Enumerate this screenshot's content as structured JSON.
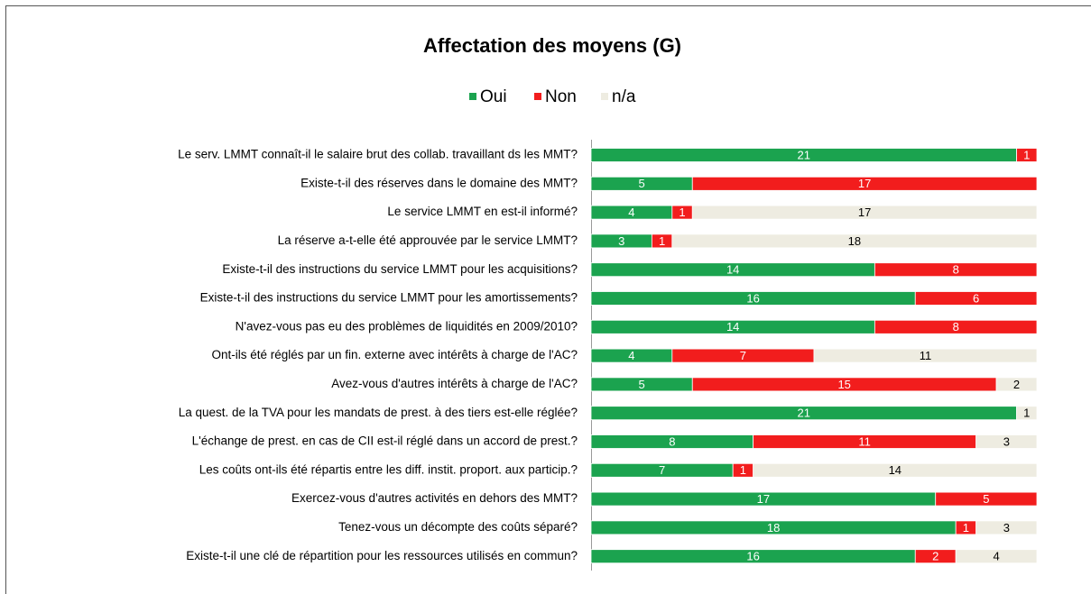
{
  "chart_data": {
    "type": "stacked-barh",
    "title": "Affectation des moyens (G)",
    "categories": [
      "Le serv. LMMT connaît-il le salaire brut des collab. travaillant ds les MMT?",
      "Existe-t-il des réserves dans le domaine des MMT?",
      "Le service LMMT en est-il informé?",
      "La réserve a-t-elle été approuvée par le service LMMT?",
      "Existe-t-il des instructions du service LMMT pour les acquisitions?",
      "Existe-t-il des instructions du service LMMT pour les amortissements?",
      "N'avez-vous pas eu des problèmes de liquidités en 2009/2010?",
      "Ont-ils été réglés par un fin. externe avec intérêts à charge de l'AC?",
      "Avez-vous d'autres intérêts à charge de l'AC?",
      "La quest. de la TVA pour les mandats de prest. à des tiers est-elle réglée?",
      "L'échange de prest. en cas de CII est-il réglé dans un accord de prest.?",
      "Les coûts ont-ils été répartis entre les diff. instit. proport. aux particip.?",
      "Exercez-vous d'autres activités en dehors des MMT?",
      "Tenez-vous un décompte des coûts séparé?",
      "Existe-t-il une clé de répartition pour les ressources utilisés en commun?"
    ],
    "series": [
      {
        "name": "Oui",
        "color": "#1ba34f",
        "values": [
          21,
          5,
          4,
          3,
          14,
          16,
          14,
          4,
          5,
          21,
          8,
          7,
          17,
          18,
          16
        ]
      },
      {
        "name": "Non",
        "color": "#f21d1d",
        "values": [
          1,
          17,
          1,
          1,
          8,
          6,
          8,
          7,
          15,
          null,
          11,
          1,
          5,
          1,
          2
        ]
      },
      {
        "name": "n/a",
        "color": "#eeece1",
        "values": [
          null,
          null,
          17,
          18,
          null,
          null,
          null,
          11,
          2,
          1,
          3,
          14,
          null,
          3,
          4
        ]
      }
    ],
    "xlim": [
      0,
      22
    ]
  }
}
